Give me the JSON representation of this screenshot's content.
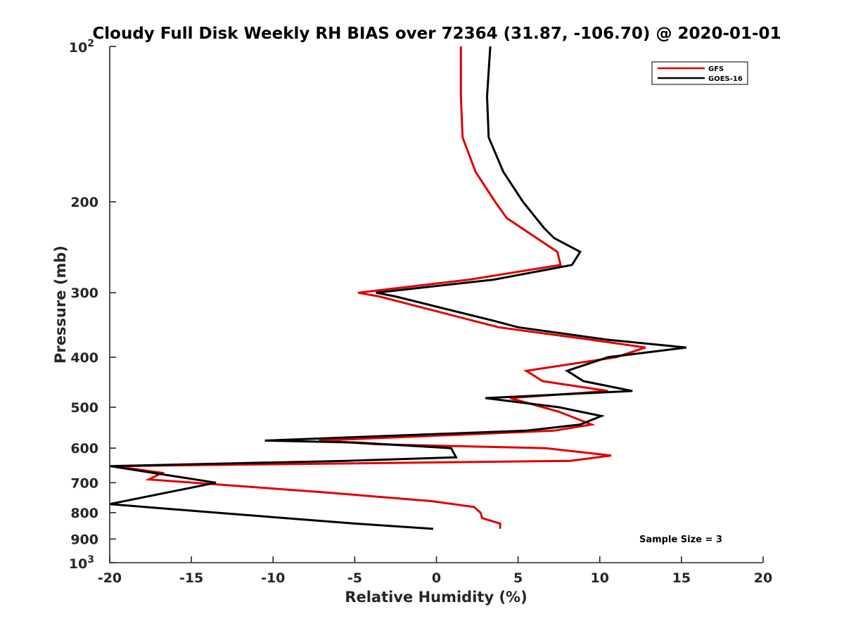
{
  "chart_data": {
    "type": "line",
    "title": "Cloudy Full Disk Weekly RH BIAS over 72364 (31.87, -106.70) @ 2020-01-01",
    "xlabel": "Relative Humidity (%)",
    "ylabel": "Pressure (mb)",
    "xlim": [
      -20,
      20
    ],
    "ylim": [
      100,
      1000
    ],
    "yscale": "log",
    "y_reversed": true,
    "grid": false,
    "legend_position": "top-right",
    "x_ticks": [
      -20,
      -15,
      -10,
      -5,
      0,
      5,
      10,
      15,
      20
    ],
    "x_tick_labels": [
      "-20",
      "-15",
      "-10",
      "-5",
      "0",
      "5",
      "10",
      "15",
      "20"
    ],
    "y_ticks": [
      100,
      200,
      300,
      400,
      500,
      600,
      700,
      800,
      900,
      1000
    ],
    "y_tick_labels": [
      {
        "base": "10",
        "exp": "2"
      },
      {
        "base": "200",
        "exp": ""
      },
      {
        "base": "300",
        "exp": ""
      },
      {
        "base": "400",
        "exp": ""
      },
      {
        "base": "500",
        "exp": ""
      },
      {
        "base": "600",
        "exp": ""
      },
      {
        "base": "700",
        "exp": ""
      },
      {
        "base": "800",
        "exp": ""
      },
      {
        "base": "900",
        "exp": ""
      },
      {
        "base": "10",
        "exp": "3"
      }
    ],
    "series": [
      {
        "name": "GFS",
        "color": "#e00000",
        "points": [
          [
            1.5,
            100
          ],
          [
            1.5,
            125
          ],
          [
            1.6,
            150
          ],
          [
            2.4,
            175
          ],
          [
            3.6,
            200
          ],
          [
            4.3,
            215
          ],
          [
            7.4,
            250
          ],
          [
            7.6,
            265
          ],
          [
            2.0,
            283
          ],
          [
            -4.8,
            300
          ],
          [
            -3.5,
            305
          ],
          [
            3.8,
            350
          ],
          [
            9.5,
            370
          ],
          [
            12.8,
            383
          ],
          [
            11.0,
            400
          ],
          [
            5.5,
            425
          ],
          [
            6.5,
            445
          ],
          [
            10.5,
            465
          ],
          [
            4.5,
            480
          ],
          [
            7.5,
            510
          ],
          [
            9.5,
            540
          ],
          [
            7.2,
            555
          ],
          [
            1.5,
            565
          ],
          [
            -7.2,
            580
          ],
          [
            -3.5,
            590
          ],
          [
            6.7,
            600
          ],
          [
            10.7,
            620
          ],
          [
            8.2,
            635
          ],
          [
            -19.7,
            650
          ],
          [
            -16.8,
            670
          ],
          [
            -17.6,
            690
          ],
          [
            -7.0,
            730
          ],
          [
            -0.3,
            760
          ],
          [
            2.3,
            780
          ],
          [
            2.7,
            800
          ],
          [
            2.8,
            820
          ],
          [
            3.9,
            840
          ],
          [
            3.9,
            860
          ]
        ]
      },
      {
        "name": "GOES-16",
        "color": "#000000",
        "points": [
          [
            3.3,
            100
          ],
          [
            3.1,
            125
          ],
          [
            3.2,
            150
          ],
          [
            4.1,
            175
          ],
          [
            5.3,
            200
          ],
          [
            6.6,
            225
          ],
          [
            7.2,
            235
          ],
          [
            8.8,
            250
          ],
          [
            8.3,
            265
          ],
          [
            3.5,
            283
          ],
          [
            -3.7,
            300
          ],
          [
            -2.5,
            305
          ],
          [
            3.5,
            340
          ],
          [
            5.0,
            350
          ],
          [
            10.5,
            370
          ],
          [
            15.3,
            383
          ],
          [
            10.5,
            400
          ],
          [
            8.0,
            425
          ],
          [
            9.0,
            445
          ],
          [
            12.0,
            465
          ],
          [
            3.0,
            480
          ],
          [
            7.5,
            500
          ],
          [
            10.1,
            520
          ],
          [
            8.8,
            540
          ],
          [
            5.5,
            555
          ],
          [
            -10.5,
            580
          ],
          [
            -5.0,
            585
          ],
          [
            0.9,
            600
          ],
          [
            1.2,
            625
          ],
          [
            -5.5,
            635
          ],
          [
            -20.0,
            650
          ],
          [
            -13.5,
            700
          ],
          [
            -20.0,
            770
          ],
          [
            -13.5,
            800
          ],
          [
            -5.0,
            840
          ],
          [
            -0.2,
            860
          ]
        ]
      }
    ],
    "annotations": [
      {
        "text": "Sample Size = 3"
      }
    ]
  }
}
